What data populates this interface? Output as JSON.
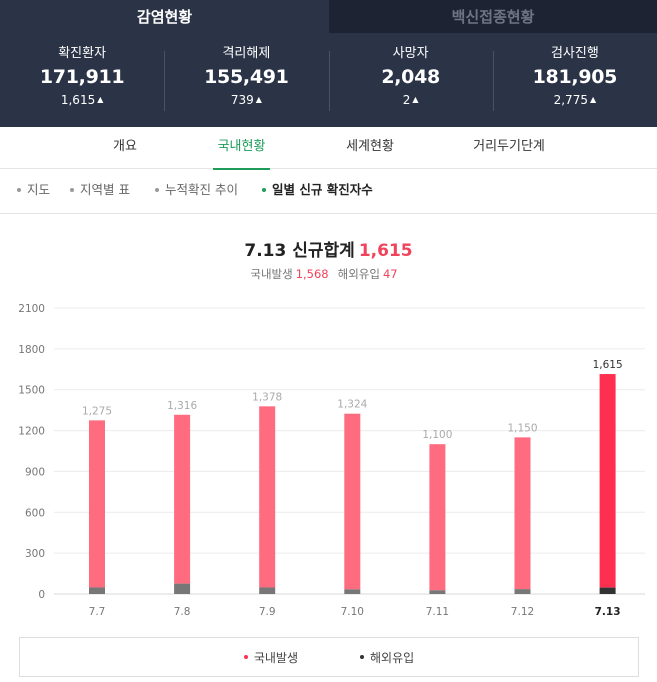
{
  "top_tabs": [
    {
      "label": "감염현황",
      "active": true
    },
    {
      "label": "백신접종현황",
      "active": false
    }
  ],
  "stats": [
    {
      "label": "확진환자",
      "value": "171,911",
      "delta": "1,615"
    },
    {
      "label": "격리해제",
      "value": "155,491",
      "delta": "739"
    },
    {
      "label": "사망자",
      "value": "2,048",
      "delta": "2"
    },
    {
      "label": "검사진행",
      "value": "181,905",
      "delta": "2,775"
    }
  ],
  "nav_tabs": [
    {
      "label": "개요",
      "active": false
    },
    {
      "label": "국내현황",
      "active": true
    },
    {
      "label": "세계현황",
      "active": false
    },
    {
      "label": "거리두기단계",
      "active": false
    }
  ],
  "sub_tabs": [
    {
      "label": "지도",
      "active": false
    },
    {
      "label": "지역별 표",
      "active": false
    },
    {
      "label": "누적확진 추이",
      "active": false
    },
    {
      "label": "일별 신규 확진자수",
      "active": true
    }
  ],
  "summary": {
    "title": "7.13 신규합계",
    "total": "1,615",
    "domestic_label": "국내발생",
    "domestic_value": "1,568",
    "overseas_label": "해외유입",
    "overseas_value": "47"
  },
  "colors": {
    "header_bg": "#2b3447",
    "accent_green": "#1d9c5a",
    "bar_red": "#ff6b7f",
    "bar_latest": "#ff304f",
    "overseas_gray": "#777777",
    "overseas_latest": "#333333"
  },
  "chart_data": {
    "type": "bar",
    "stacked": true,
    "categories": [
      "7.7",
      "7.8",
      "7.9",
      "7.10",
      "7.11",
      "7.12",
      "7.13"
    ],
    "totals": [
      1275,
      1316,
      1378,
      1324,
      1100,
      1150,
      1615
    ],
    "total_labels": [
      "1,275",
      "1,316",
      "1,378",
      "1,324",
      "1,100",
      "1,150",
      "1,615"
    ],
    "series": [
      {
        "name": "국내발생",
        "values": [
          1227,
          1240,
          1330,
          1290,
          1073,
          1114,
          1568
        ]
      },
      {
        "name": "해외유입",
        "values": [
          48,
          76,
          48,
          34,
          27,
          36,
          47
        ]
      }
    ],
    "yticks": [
      0,
      300,
      600,
      900,
      1200,
      1500,
      1800,
      2100
    ],
    "ylim": [
      0,
      2100
    ],
    "grid": true,
    "highlight_last": true,
    "legend": [
      {
        "name": "국내발생",
        "color": "#ff304f"
      },
      {
        "name": "해외유입",
        "color": "#333333"
      }
    ]
  }
}
